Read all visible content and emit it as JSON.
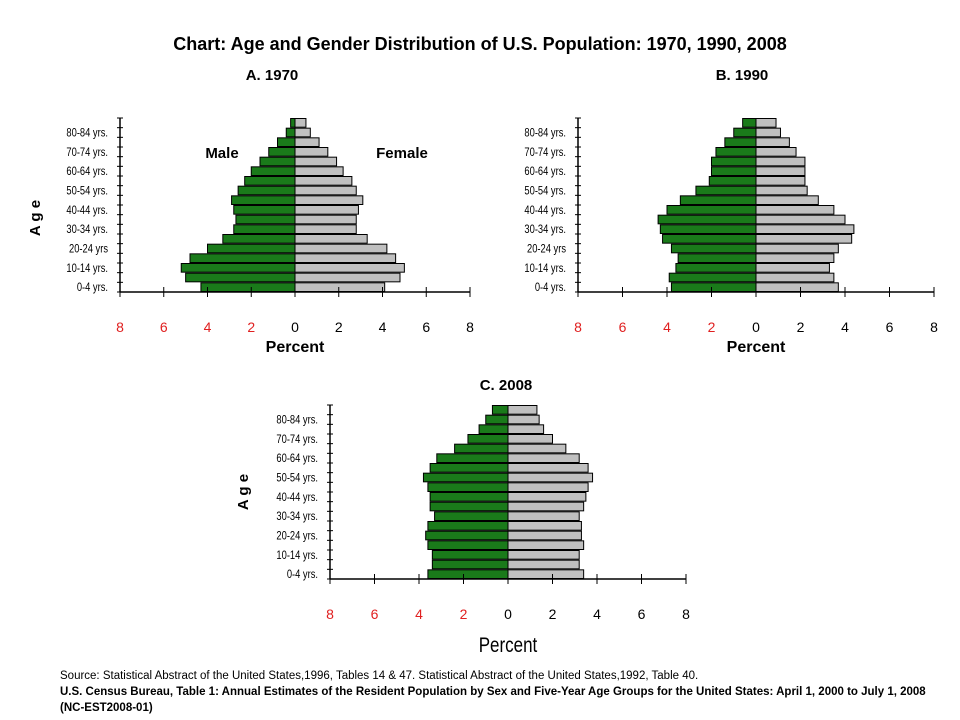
{
  "title": "Chart: Age and Gender Distribution of U.S. Population: 1970, 1990, 2008",
  "source": {
    "line1": "Source: Statistical Abstract of the United States,1996, Tables 14 & 47. Statistical Abstract of the United States,1992, Table 40.",
    "line2": "U.S. Census Bureau, Table 1: Annual Estimates of the Resident Population by Sex and Five-Year Age Groups for the United States: April 1, 2000 to July 1, 2008 (NC-EST2008-01)"
  },
  "colors": {
    "male": "#1a7a1a",
    "female": "#c0c0c0",
    "axis_negative": "#e02020",
    "axis_positive": "#000000"
  },
  "chart_data": [
    {
      "type": "bar",
      "title": "A. 1970",
      "ylabel": "A g e",
      "xlabel": "Percent",
      "series_labels": {
        "male": "Male",
        "female": "Female"
      },
      "xlim": [
        -8,
        8
      ],
      "xticks": [
        "8",
        "6",
        "4",
        "2",
        "0",
        "2",
        "4",
        "6",
        "8"
      ],
      "yticklabels": [
        "80-84 yrs.",
        "70-74 yrs.",
        "60-64 yrs.",
        "50-54 yrs.",
        "40-44 yrs.",
        "30-34 yrs.",
        "20-24 yrs",
        "10-14 yrs.",
        "0-4 yrs."
      ],
      "male": [
        4.3,
        5.0,
        5.2,
        4.8,
        4.0,
        3.3,
        2.8,
        2.7,
        2.8,
        2.9,
        2.6,
        2.3,
        2.0,
        1.6,
        1.2,
        0.8,
        0.4,
        0.2
      ],
      "female": [
        4.1,
        4.8,
        5.0,
        4.6,
        4.2,
        3.3,
        2.8,
        2.8,
        2.9,
        3.1,
        2.8,
        2.6,
        2.2,
        1.9,
        1.5,
        1.1,
        0.7,
        0.5
      ]
    },
    {
      "type": "bar",
      "title": "B. 1990",
      "ylabel": "",
      "xlabel": "Percent",
      "xlim": [
        -8,
        8
      ],
      "xticks": [
        "8",
        "6",
        "4",
        "2",
        "0",
        "2",
        "4",
        "6",
        "8"
      ],
      "yticklabels": [
        "80-84 yrs.",
        "70-74 yrs.",
        "60-64 yrs.",
        "50-54 yrs.",
        "40-44 yrs.",
        "30-34 yrs.",
        "20-24 yrs",
        "10-14 yrs.",
        "0-4 yrs."
      ],
      "male": [
        3.8,
        3.9,
        3.6,
        3.5,
        3.8,
        4.2,
        4.3,
        4.4,
        4.0,
        3.4,
        2.7,
        2.1,
        2.0,
        2.0,
        1.8,
        1.4,
        1.0,
        0.6
      ],
      "female": [
        3.7,
        3.5,
        3.3,
        3.5,
        3.7,
        4.3,
        4.4,
        4.0,
        3.5,
        2.8,
        2.3,
        2.2,
        2.2,
        2.2,
        1.8,
        1.5,
        1.1,
        0.9
      ]
    },
    {
      "type": "bar",
      "title": "C. 2008",
      "ylabel": "A g e",
      "xlabel": "Percent",
      "xlim": [
        -8,
        8
      ],
      "xticks": [
        "8",
        "6",
        "4",
        "2",
        "0",
        "2",
        "4",
        "6",
        "8"
      ],
      "yticklabels": [
        "80-84 yrs.",
        "70-74 yrs.",
        "60-64 yrs.",
        "50-54 yrs.",
        "40-44 yrs.",
        "30-34 yrs.",
        "20-24 yrs.",
        "10-14 yrs.",
        "0-4 yrs."
      ],
      "male": [
        3.6,
        3.4,
        3.4,
        3.6,
        3.7,
        3.6,
        3.3,
        3.5,
        3.5,
        3.6,
        3.8,
        3.5,
        3.2,
        2.4,
        1.8,
        1.3,
        1.0,
        0.7
      ],
      "female": [
        3.4,
        3.2,
        3.2,
        3.4,
        3.3,
        3.3,
        3.2,
        3.4,
        3.5,
        3.6,
        3.8,
        3.6,
        3.2,
        2.6,
        2.0,
        1.6,
        1.4,
        1.3
      ]
    }
  ]
}
